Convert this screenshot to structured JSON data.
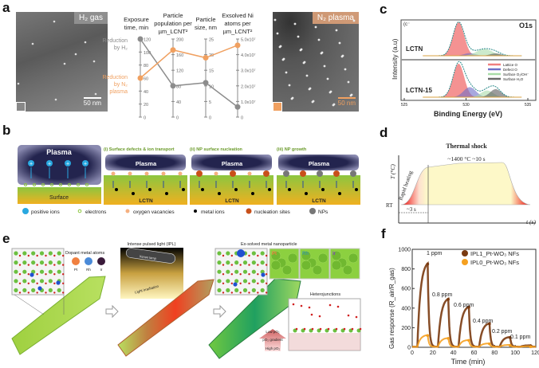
{
  "panels": {
    "a": "a",
    "b": "b",
    "c": "c",
    "d": "d",
    "e": "e",
    "f": "f"
  },
  "panel_a": {
    "image1_badge": "H₂ gas",
    "image2_badge": "N₂ plasma",
    "scalebar1": "50 nm",
    "scalebar2": "50 nm",
    "label_h2": [
      "Reduction",
      "by H₂"
    ],
    "label_n2": [
      "Reduction",
      "by N₂",
      "plasma"
    ],
    "colors": {
      "h2": "#8c8c8c",
      "n2": "#f0a060"
    }
  },
  "chart_data": [
    {
      "type": "line",
      "title": "Parallel coordinates: H2 gas vs N2 plasma reduction",
      "axes": [
        {
          "title": [
            "Exposure",
            "time, min"
          ],
          "ticks": [
            "0",
            "20",
            "40",
            "60",
            "80",
            "100",
            "120"
          ],
          "range": [
            0,
            120
          ]
        },
        {
          "title": [
            "Particle",
            "population per",
            "µm_LCNT²"
          ],
          "ticks": [
            "0",
            "40",
            "80",
            "120",
            "160",
            "200"
          ],
          "range": [
            0,
            200
          ]
        },
        {
          "title": [
            "Particle",
            "size, nm"
          ],
          "ticks": [
            "0",
            "5",
            "10",
            "15",
            "20",
            "25"
          ],
          "range": [
            0,
            25
          ]
        },
        {
          "title": [
            "Exsolved Ni",
            "atoms per",
            "µm_LCNT²"
          ],
          "ticks": [
            "0",
            "1.0x10⁷",
            "2.0x10⁷",
            "3.0x10⁷",
            "4.0x10⁷",
            "5.0x10⁷"
          ],
          "range": [
            0,
            50000000.0
          ]
        }
      ],
      "series": [
        {
          "name": "Reduction by H2",
          "values": [
            120,
            80,
            11,
            6500000.0
          ]
        },
        {
          "name": "Reduction by N2 plasma",
          "values": [
            60,
            172,
            19,
            46000000.0
          ]
        }
      ]
    },
    {
      "type": "area",
      "title": "O1s",
      "xlabel": "Binding Energy (eV)",
      "ylabel": "Intensity (a.u)",
      "xlim": [
        525,
        535
      ],
      "xticks": [
        "525",
        "530",
        "535"
      ],
      "subplots": [
        {
          "name": "LCTN",
          "peaks": [
            {
              "component": "Lattice O",
              "center": 529.4,
              "amp": 1.0,
              "width": 0.45
            },
            {
              "component": "Defect O",
              "center": 530.3,
              "amp": 0.08,
              "width": 0.45
            },
            {
              "component": "Surface O2/OH⁻",
              "center": 531.5,
              "amp": 0.2,
              "width": 0.65
            },
            {
              "component": "Surface H2O",
              "center": 532.4,
              "amp": 0.07,
              "width": 0.45
            }
          ]
        },
        {
          "name": "LCTN-15",
          "peaks": [
            {
              "component": "Lattice O",
              "center": 529.4,
              "amp": 1.0,
              "width": 0.45
            },
            {
              "component": "Defect O",
              "center": 530.3,
              "amp": 0.3,
              "width": 0.5
            },
            {
              "component": "Surface O2/OH⁻",
              "center": 531.7,
              "amp": 0.2,
              "width": 0.5
            },
            {
              "component": "Surface H2O",
              "center": 532.4,
              "amp": 0.24,
              "width": 0.45
            }
          ]
        }
      ],
      "legend": [
        "Lattice O",
        "Defect O",
        "Surface O₂/OH⁻",
        "Surface H₂O"
      ],
      "legend_colors": [
        "#f08080",
        "#7070c8",
        "#a8dca8",
        "#6a6a6a"
      ],
      "inset_mark": "(c⁻"
    },
    {
      "type": "line",
      "xlabel": "Time (min)",
      "ylabel": "Gas response (R_air/R_gas)",
      "xlim": [
        0,
        120
      ],
      "ylim": [
        0,
        1000
      ],
      "xticks": [
        "0",
        "20",
        "40",
        "60",
        "80",
        "100",
        "120"
      ],
      "yticks": [
        "0",
        "200",
        "400",
        "600",
        "800",
        "1000"
      ],
      "pulse_starts": [
        5,
        25,
        45,
        65,
        85,
        105
      ],
      "pulse_duration": 10,
      "annotations": [
        "1 ppm",
        "0.8 ppm",
        "0.6 ppm",
        "0.4 ppm",
        "0.2 ppm",
        "0.1 ppm"
      ],
      "legend_position": "top-right",
      "series": [
        {
          "name": "IPL1_Pt-WO₃ NFs",
          "color": "#7a3a10",
          "values": [
            850,
            490,
            410,
            240,
            100,
            15
          ]
        },
        {
          "name": "IPL0_Pt-WO₃ NFs",
          "color": "#f5a020",
          "values": [
            120,
            90,
            70,
            35,
            20,
            5
          ]
        }
      ]
    }
  ],
  "panel_b": {
    "plasma": "Plasma",
    "surface": "Surface",
    "lctn": "LCTN",
    "steps": [
      "(i) Surface defects & ion transport",
      "(ii) NP surface nucleation",
      "(iii) NP growth"
    ],
    "legend": [
      "positive ions",
      "electrons",
      "oxygen vacancies",
      "metal ions",
      "nucleation sites",
      "NPs"
    ]
  },
  "panel_d": {
    "title": "Thermal shock",
    "plateau": "~1400 °C ~10 s",
    "rapid": "Rapid heating",
    "ylabel": "T (°C)",
    "xlabel": "t (s)",
    "rt": "RT",
    "duration": "~3 s"
  },
  "panel_e": {
    "dopant_title": "Dopant metal atoms",
    "dopants": [
      {
        "name": "Pt",
        "color": "#f08040"
      },
      {
        "name": "Rh",
        "color": "#4a8ad8"
      },
      {
        "name": "Ir",
        "color": "#3a1a3a"
      }
    ],
    "ipl_title": "Intense pulsed light (IPL)",
    "lamp": "Xenon lamp",
    "irradiation": "Light irradiation",
    "exsolved_title": "Ex-solved metal nanoparticle",
    "hetero_title": "Heterojunctions",
    "low": "Low pO₂",
    "gradient": "pO₂ gradient",
    "high": "High pO₂",
    "metal_labels": [
      {
        "name": "Pt",
        "color": "#f08040"
      },
      {
        "name": "Rh",
        "color": "#3a9a9a"
      },
      {
        "name": "Ir",
        "color": "#8050b0"
      }
    ]
  }
}
